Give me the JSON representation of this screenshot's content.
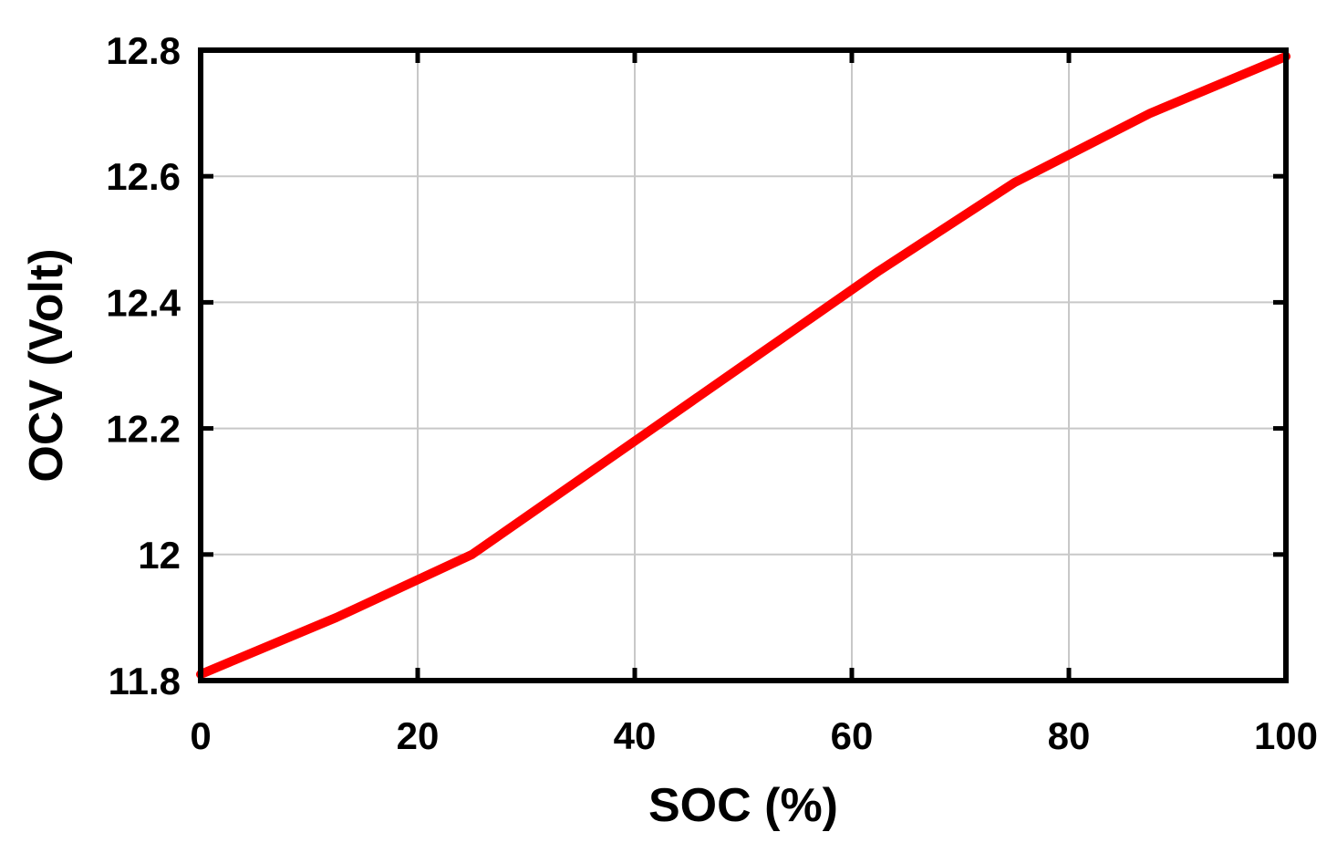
{
  "chart_data": {
    "type": "line",
    "title": "",
    "xlabel": "SOC (%)",
    "ylabel": "OCV (Volt)",
    "xlim": [
      0,
      100
    ],
    "ylim": [
      11.8,
      12.8
    ],
    "grid": true,
    "x_ticks": [
      {
        "value": 0,
        "label": "0"
      },
      {
        "value": 20,
        "label": "20"
      },
      {
        "value": 40,
        "label": "40"
      },
      {
        "value": 60,
        "label": "60"
      },
      {
        "value": 80,
        "label": "80"
      },
      {
        "value": 100,
        "label": "100"
      }
    ],
    "y_ticks": [
      {
        "value": 11.8,
        "label": "11.8"
      },
      {
        "value": 12.0,
        "label": "12"
      },
      {
        "value": 12.2,
        "label": "12.2"
      },
      {
        "value": 12.4,
        "label": "12.4"
      },
      {
        "value": 12.6,
        "label": "12.6"
      },
      {
        "value": 12.8,
        "label": "12.8"
      }
    ],
    "series": [
      {
        "color": "#ff0000",
        "x": [
          0,
          12.5,
          25,
          37.5,
          50,
          62.5,
          75,
          87.5,
          100
        ],
        "y": [
          11.81,
          11.9,
          12.0,
          12.15,
          12.3,
          12.45,
          12.59,
          12.7,
          12.79
        ]
      }
    ]
  }
}
